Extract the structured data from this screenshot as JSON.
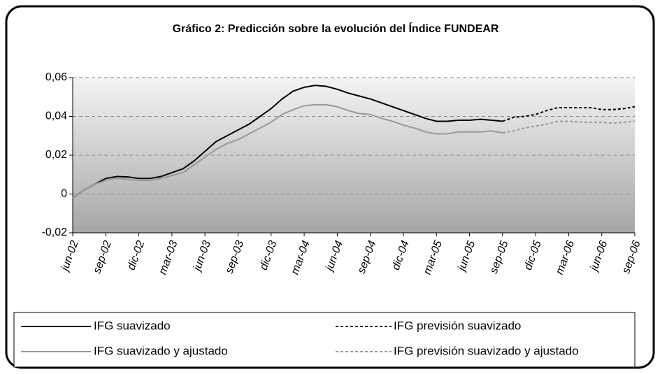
{
  "chart_data": {
    "type": "line",
    "title": "Gráfico 2: Predicción sobre la evolución del Índice FUNDEAR",
    "categories": [
      "jun-02",
      null,
      null,
      "sep-02",
      null,
      null,
      "dic-02",
      null,
      null,
      "mar-03",
      null,
      null,
      "jun-03",
      null,
      null,
      "sep-03",
      null,
      null,
      "dic-03",
      null,
      null,
      "mar-04",
      null,
      null,
      "jun-04",
      null,
      null,
      "sep-04",
      null,
      null,
      "dic-04",
      null,
      null,
      "mar-05",
      null,
      null,
      "jun-05",
      null,
      null,
      "sep-05",
      null,
      null,
      "dic-05",
      null,
      null,
      "mar-06",
      null,
      null,
      "jun-06",
      null,
      null,
      "sep-06"
    ],
    "ylim": [
      -0.02,
      0.06
    ],
    "yticks": [
      {
        "value": 0.06,
        "label": "0,06"
      },
      {
        "value": 0.04,
        "label": "0,04"
      },
      {
        "value": 0.02,
        "label": "0,02"
      },
      0,
      {
        "value": -0.02,
        "label": "-0,02"
      }
    ],
    "grid": true,
    "series": [
      {
        "name": "IFG suavizado",
        "color": "#000000",
        "dash": false,
        "values": [
          -0.002,
          0.002,
          0.005,
          0.008,
          0.009,
          0.0088,
          0.008,
          0.008,
          0.009,
          0.011,
          0.013,
          0.017,
          0.022,
          0.027,
          0.03,
          0.033,
          0.036,
          0.04,
          0.044,
          0.049,
          0.053,
          0.055,
          0.056,
          0.0555,
          0.054,
          0.052,
          0.0505,
          0.049,
          0.047,
          0.045,
          0.043,
          0.041,
          0.039,
          0.0375,
          0.0375,
          0.038,
          0.038,
          0.0385,
          0.038,
          0.0375,
          null,
          null,
          null,
          null,
          null,
          null,
          null,
          null,
          null,
          null,
          null,
          null
        ]
      },
      {
        "name": "IFG previsión suavizado",
        "color": "#000000",
        "dash": true,
        "values": [
          null,
          null,
          null,
          null,
          null,
          null,
          null,
          null,
          null,
          null,
          null,
          null,
          null,
          null,
          null,
          null,
          null,
          null,
          null,
          null,
          null,
          null,
          null,
          null,
          null,
          null,
          null,
          null,
          null,
          null,
          null,
          null,
          null,
          null,
          null,
          null,
          null,
          null,
          null,
          0.0375,
          0.0395,
          0.04,
          0.041,
          0.043,
          0.0445,
          0.0445,
          0.0445,
          0.0445,
          0.0435,
          0.0435,
          0.044,
          0.045
        ]
      },
      {
        "name": "IFG suavizado y ajustado",
        "color": "#999999",
        "dash": false,
        "values": [
          -0.002,
          0.002,
          0.005,
          0.007,
          0.008,
          0.0075,
          0.007,
          0.007,
          0.008,
          0.0095,
          0.011,
          0.015,
          0.019,
          0.023,
          0.026,
          0.028,
          0.031,
          0.034,
          0.037,
          0.041,
          0.0435,
          0.0455,
          0.046,
          0.046,
          0.045,
          0.043,
          0.0415,
          0.041,
          0.039,
          0.0375,
          0.0355,
          0.034,
          0.032,
          0.031,
          0.031,
          0.032,
          0.032,
          0.032,
          0.0325,
          0.0315,
          null,
          null,
          null,
          null,
          null,
          null,
          null,
          null,
          null,
          null,
          null,
          null
        ]
      },
      {
        "name": "IFG previsión suavizado y ajustado",
        "color": "#999999",
        "dash": true,
        "values": [
          null,
          null,
          null,
          null,
          null,
          null,
          null,
          null,
          null,
          null,
          null,
          null,
          null,
          null,
          null,
          null,
          null,
          null,
          null,
          null,
          null,
          null,
          null,
          null,
          null,
          null,
          null,
          null,
          null,
          null,
          null,
          null,
          null,
          null,
          null,
          null,
          null,
          null,
          null,
          0.0315,
          0.0325,
          0.034,
          0.035,
          0.036,
          0.0375,
          0.0375,
          0.037,
          0.037,
          0.037,
          0.0365,
          0.037,
          0.0375
        ]
      }
    ]
  }
}
